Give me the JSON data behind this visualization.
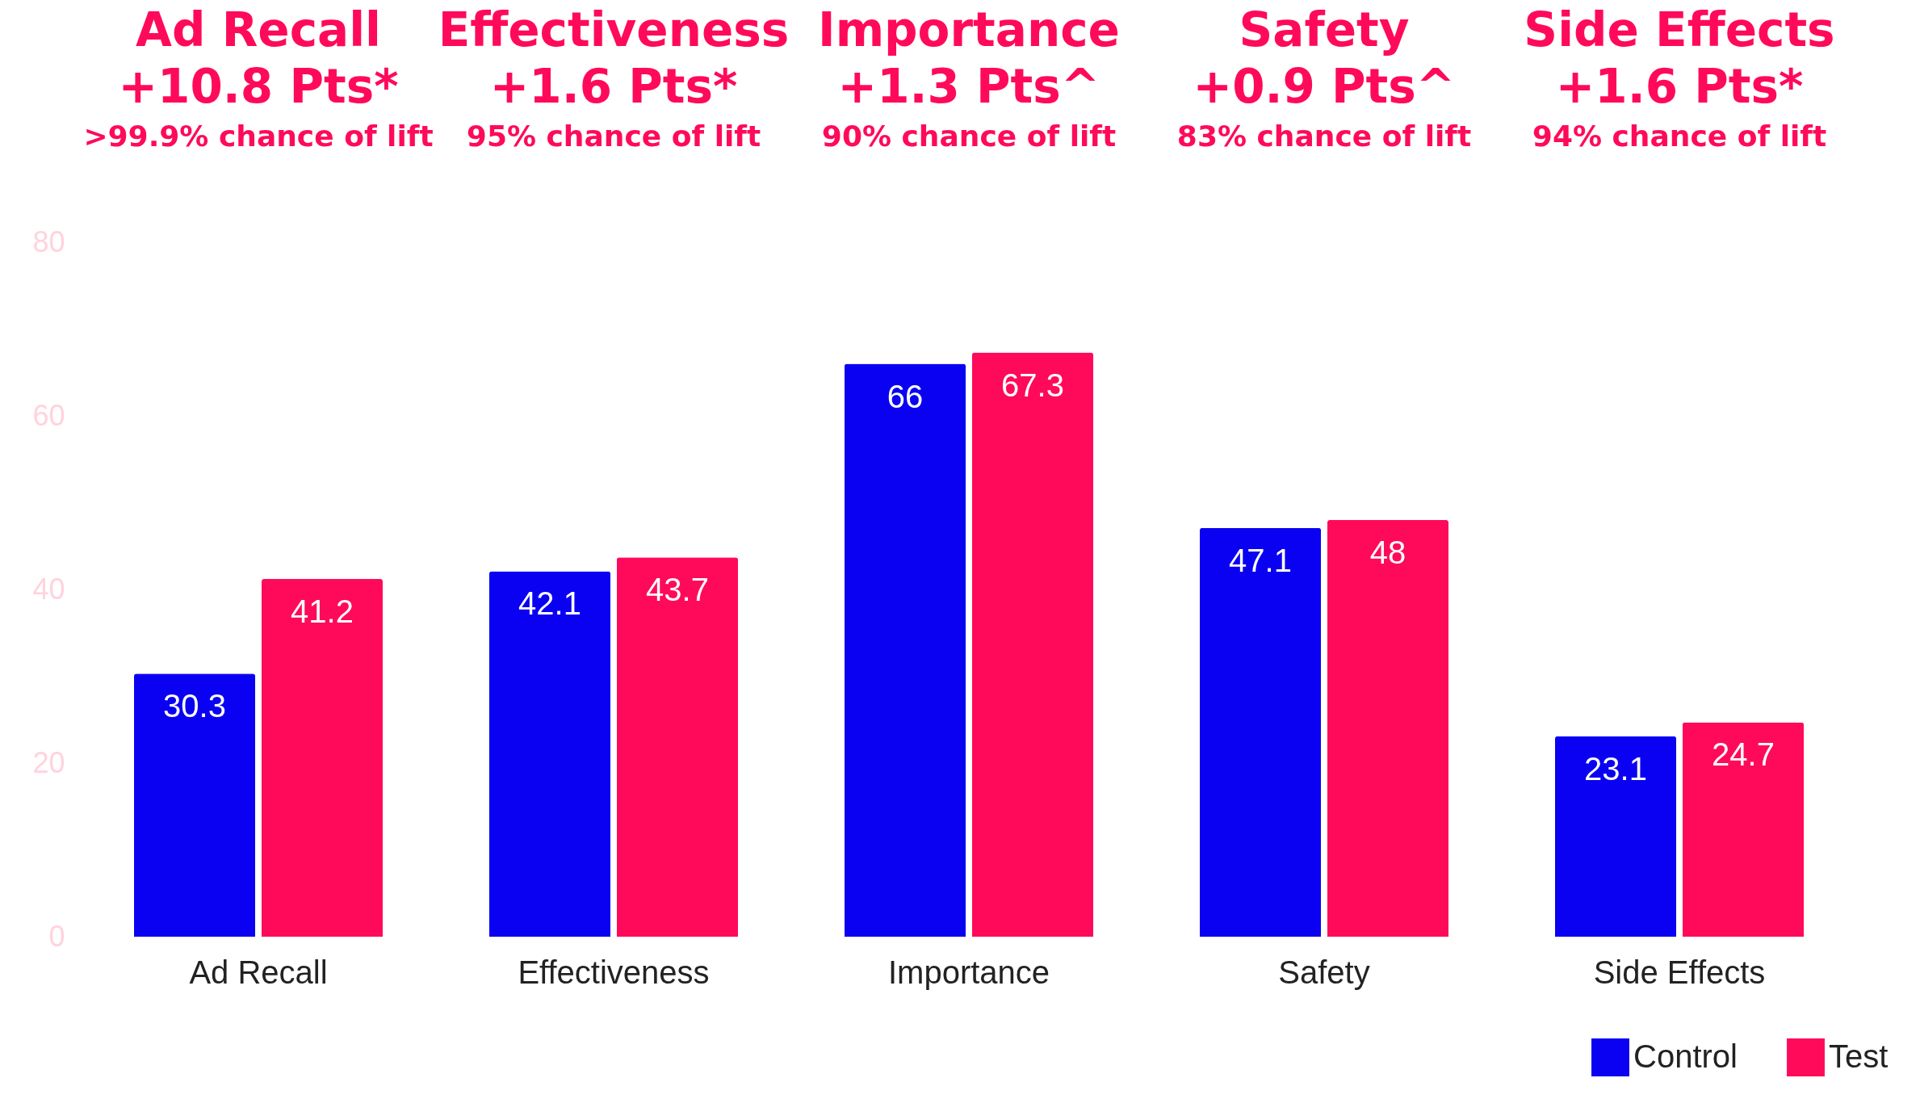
{
  "chart_data": {
    "type": "bar",
    "categories": [
      "Ad Recall",
      "Effectiveness",
      "Importance",
      "Safety",
      "Side Effects"
    ],
    "series": [
      {
        "name": "Control",
        "color": "#0a00f2",
        "values": [
          30.3,
          42.1,
          66,
          47.1,
          23.1
        ]
      },
      {
        "name": "Test",
        "color": "#ff0a5a",
        "values": [
          41.2,
          43.7,
          67.3,
          48,
          24.7
        ]
      }
    ],
    "ylim": [
      0,
      80
    ],
    "yticks": [
      0,
      20,
      40,
      60,
      80
    ],
    "grid": false,
    "legend": "bottom right",
    "data_labels": true,
    "annotations": [
      "Ad Recall",
      "+10.8 Pts*",
      ">99.9% chance of lift",
      "Effectiveness",
      "+1.6 Pts*",
      "95% chance of lift",
      "Importance",
      "+1.3 Pts^",
      "90% chance of lift",
      "Safety",
      "+0.9 Pts^",
      "83% chance of lift",
      "Side Effects",
      "+1.6 Pts*",
      "94% chance of lift"
    ]
  }
}
